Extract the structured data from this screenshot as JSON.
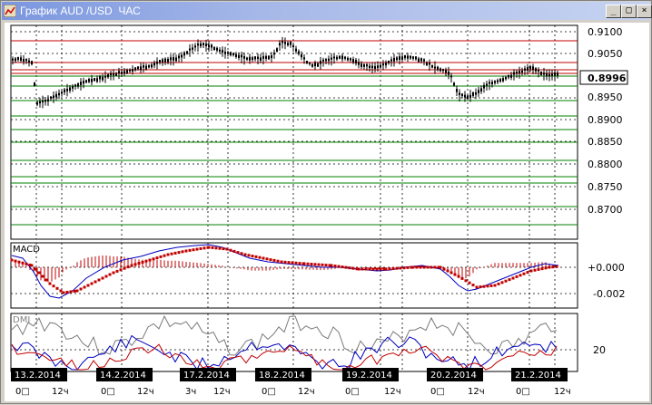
{
  "window": {
    "title": "График AUD /USD  ЧАС",
    "minimize_glyph": "_",
    "maximize_glyph": "□",
    "close_glyph": "×"
  },
  "price_axis": {
    "labels": [
      "0.9100",
      "0.9050",
      "0.8996",
      "0.8950",
      "0.8900",
      "0.8850",
      "0.8800",
      "0.8750",
      "0.8700"
    ],
    "current_price": "0.8996"
  },
  "panels": {
    "macd": {
      "label": "MACD",
      "zero_label": "+0.000",
      "low_label": "-0.002"
    },
    "dmi": {
      "label": "DMI",
      "level_label": "20"
    }
  },
  "time_axis": {
    "dates": [
      "13.2.2014",
      "14.2.2014",
      "17.2.2014",
      "18.2.2014",
      "19.2.2014",
      "20.2.2014",
      "21.2.2014"
    ],
    "hours": [
      "0□",
      "12ч",
      "0□",
      "12ч",
      "3ч",
      "12ч",
      "0□",
      "12ч",
      "0□",
      "12ч",
      "0□",
      "12ч",
      "0□",
      "12ч"
    ]
  },
  "colors": {
    "candles": "#000000",
    "resistance_lines": "#c00000",
    "support_lines": "#008000",
    "macd_line": "#0000c0",
    "macd_signal": "#c00000",
    "macd_histogram": "#c00000",
    "dmi_plus": "#0000c0",
    "dmi_minus": "#c00000",
    "adx": "#606060"
  }
}
